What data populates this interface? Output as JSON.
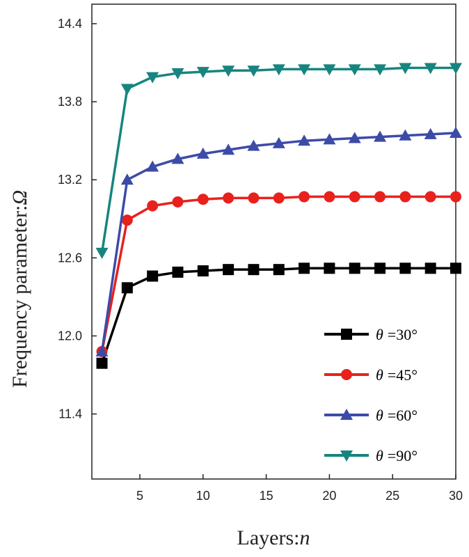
{
  "chart_data": {
    "type": "line",
    "xlabel": "Layers:n",
    "xlabel_text": "Layers:",
    "xlabel_var": "n",
    "ylabel": "Frequency parameter:Ω",
    "ylabel_text": "Frequency parameter:",
    "ylabel_var": "Ω",
    "xlim": [
      1.2,
      30
    ],
    "ylim": [
      10.9,
      14.55
    ],
    "xticks": [
      5,
      10,
      15,
      20,
      25,
      30
    ],
    "xtick_labels": [
      "5",
      "10",
      "15",
      "20",
      "25",
      "30"
    ],
    "yticks": [
      11.4,
      12.0,
      12.6,
      13.2,
      13.8,
      14.4
    ],
    "ytick_labels": [
      "11.4",
      "12.0",
      "12.6",
      "13.2",
      "13.8",
      "14.4"
    ],
    "grid": false,
    "legend_position": "bottom-right",
    "x": [
      2,
      4,
      6,
      8,
      10,
      12,
      14,
      16,
      18,
      20,
      22,
      24,
      26,
      28,
      30
    ],
    "series": [
      {
        "name": "θ =30°",
        "theta_label": "θ",
        "value_label": "=30°",
        "color": "#000000",
        "marker": "square",
        "values": [
          11.79,
          12.37,
          12.46,
          12.49,
          12.5,
          12.51,
          12.51,
          12.51,
          12.52,
          12.52,
          12.52,
          12.52,
          12.52,
          12.52,
          12.52
        ]
      },
      {
        "name": "θ =45°",
        "theta_label": "θ",
        "value_label": "=45°",
        "color": "#e8211d",
        "marker": "circle",
        "values": [
          11.88,
          12.89,
          13.0,
          13.03,
          13.05,
          13.06,
          13.06,
          13.06,
          13.07,
          13.07,
          13.07,
          13.07,
          13.07,
          13.07,
          13.07
        ]
      },
      {
        "name": "θ =60°",
        "theta_label": "θ",
        "value_label": "=60°",
        "color": "#3c4ba8",
        "marker": "triangle-up",
        "values": [
          11.88,
          13.2,
          13.3,
          13.36,
          13.4,
          13.43,
          13.46,
          13.48,
          13.5,
          13.51,
          13.52,
          13.53,
          13.54,
          13.55,
          13.56
        ]
      },
      {
        "name": "θ =90°",
        "theta_label": "θ",
        "value_label": "=90°",
        "color": "#17857f",
        "marker": "triangle-down",
        "values": [
          12.64,
          13.9,
          13.99,
          14.02,
          14.03,
          14.04,
          14.04,
          14.05,
          14.05,
          14.05,
          14.05,
          14.05,
          14.06,
          14.06,
          14.06
        ]
      }
    ]
  }
}
